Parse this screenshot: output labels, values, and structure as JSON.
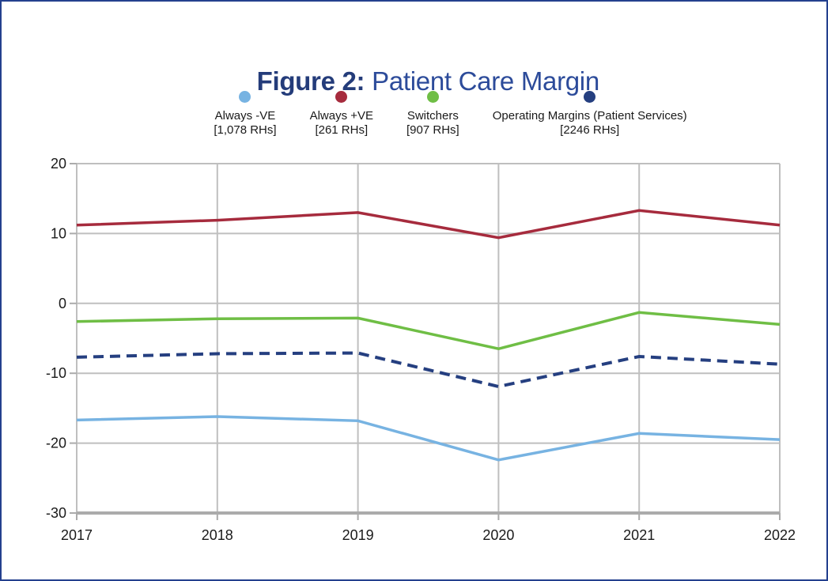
{
  "figure": {
    "border_color": "#24408E"
  },
  "chart_data": {
    "type": "line",
    "title_bold": "Figure 2:",
    "title_rest": " Patient Care Margin",
    "title_bold_color": "#243C7A",
    "title_rest_color": "#2C4B9A",
    "x": [
      2017,
      2018,
      2019,
      2020,
      2021,
      2022
    ],
    "series": [
      {
        "name": "Always -VE",
        "count_label": "[1,078 RHs]",
        "color": "#77B3E2",
        "line_style": "solid",
        "values": [
          -16.7,
          -16.2,
          -16.8,
          -22.4,
          -18.6,
          -19.5
        ]
      },
      {
        "name": "Always +VE",
        "count_label": "[261 RHs]",
        "color": "#A62B3D",
        "line_style": "solid",
        "values": [
          11.2,
          11.9,
          13.0,
          9.4,
          13.3,
          11.2
        ]
      },
      {
        "name": "Switchers",
        "count_label": "[907 RHs]",
        "color": "#6FBE45",
        "line_style": "solid",
        "values": [
          -2.6,
          -2.2,
          -2.1,
          -6.5,
          -1.3,
          -3.0
        ]
      },
      {
        "name": "Operating Margins (Patient Services)",
        "count_label": "[2246 RHs]",
        "color": "#253F80",
        "line_style": "dashed",
        "values": [
          -7.7,
          -7.2,
          -7.1,
          -11.9,
          -7.6,
          -8.7
        ]
      }
    ],
    "ylim": [
      -30,
      20
    ],
    "yticks": [
      20,
      10,
      0,
      -10,
      -20,
      -30
    ],
    "xlabel": "",
    "ylabel": "",
    "legend_position": "top",
    "grid": true,
    "grid_color": "#BFBFBF",
    "axis_color": "#ABABAB",
    "tick_label_color": "#1A1A1A"
  }
}
